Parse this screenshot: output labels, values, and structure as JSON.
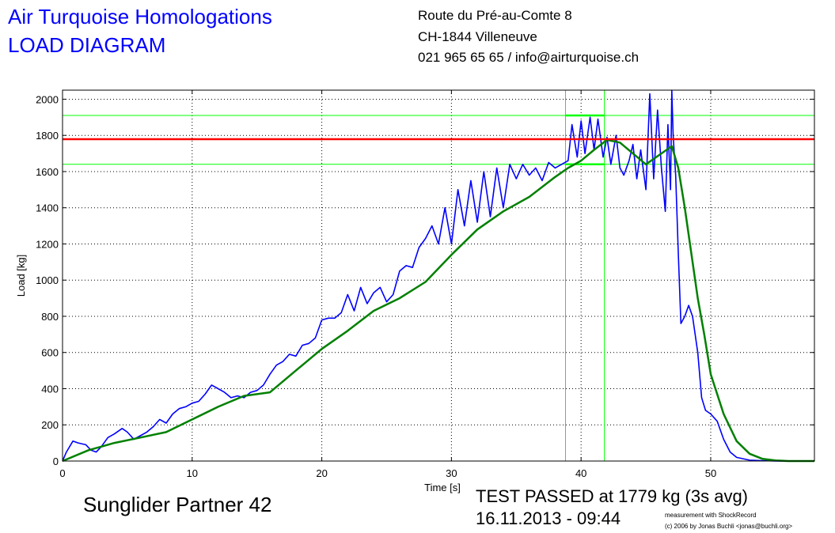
{
  "header": {
    "title_line1": "Air Turquoise Homologations",
    "title_line2": "LOAD DIAGRAM",
    "address_line1": "Route du Pré-au-Comte 8",
    "address_line2": "CH-1844 Villeneuve",
    "address_line3": "021 965 65 65 / info@airturquoise.ch"
  },
  "footer": {
    "product": "Sunglider Partner 42",
    "verdict": "TEST PASSED at 1779 kg (3s avg)",
    "datetime": "16.11.2013 - 09:44",
    "credit_line1": "measurement with ShockRecord",
    "credit_line2": "(c) 2006 by Jonas Buchli <jonas@buchli.org>"
  },
  "colors": {
    "raw": "#0000ff",
    "avg": "#008000",
    "threshold": "#ff0000",
    "window": "#00ff00"
  },
  "chart_data": {
    "type": "line",
    "xlabel": "Time [s]",
    "ylabel": "Load [kg]",
    "xlim": [
      0,
      58
    ],
    "ylim": [
      0,
      2050
    ],
    "xticks": [
      0,
      10,
      20,
      30,
      40,
      50
    ],
    "yticks": [
      0,
      200,
      400,
      600,
      800,
      1000,
      1200,
      1400,
      1600,
      1800,
      2000
    ],
    "grid": true,
    "threshold": 1779,
    "window_x": [
      38.8,
      41.8
    ],
    "window_y": [
      1640,
      1910
    ],
    "series": [
      {
        "key": "raw",
        "x": [
          0,
          0.3,
          0.8,
          1.2,
          1.8,
          2.2,
          2.6,
          3.0,
          3.5,
          4.0,
          4.6,
          5.0,
          5.5,
          6.0,
          6.5,
          7.0,
          7.5,
          8.0,
          8.5,
          9.0,
          9.5,
          10.0,
          10.5,
          11.0,
          11.5,
          12.0,
          12.5,
          13.0,
          13.5,
          14.0,
          14.5,
          15.0,
          15.5,
          16.0,
          16.5,
          17.0,
          17.5,
          18.0,
          18.5,
          19.0,
          19.5,
          20.0,
          20.5,
          21.0,
          21.5,
          22.0,
          22.5,
          23.0,
          23.5,
          24.0,
          24.5,
          25.0,
          25.5,
          26.0,
          26.5,
          27.0,
          27.5,
          28.0,
          28.5,
          29.0,
          29.5,
          30.0,
          30.5,
          31.0,
          31.5,
          32.0,
          32.5,
          33.0,
          33.5,
          34.0,
          34.5,
          35.0,
          35.5,
          36.0,
          36.5,
          37.0,
          37.5,
          38.0,
          38.5,
          39.0,
          39.3,
          39.7,
          40.0,
          40.3,
          40.7,
          41.0,
          41.3,
          41.7,
          42.0,
          42.3,
          42.7,
          43.0,
          43.3,
          43.7,
          44.0,
          44.3,
          44.6,
          45.0,
          45.3,
          45.6,
          45.9,
          46.2,
          46.5,
          46.7,
          46.9,
          47.0,
          47.1,
          47.3,
          47.5,
          47.7,
          48.0,
          48.3,
          48.6,
          49.0,
          49.3,
          49.6,
          50.0,
          50.5,
          51.0,
          51.5,
          52.0,
          53.0,
          54.0,
          55.0,
          56.0,
          57.0,
          58.0
        ],
        "values": [
          0,
          50,
          110,
          100,
          90,
          60,
          50,
          80,
          130,
          150,
          180,
          160,
          120,
          140,
          160,
          190,
          230,
          210,
          260,
          290,
          300,
          320,
          330,
          370,
          420,
          400,
          380,
          350,
          360,
          350,
          380,
          390,
          420,
          480,
          530,
          550,
          590,
          580,
          640,
          650,
          680,
          780,
          790,
          790,
          820,
          920,
          830,
          960,
          870,
          930,
          960,
          880,
          920,
          1050,
          1080,
          1070,
          1180,
          1230,
          1300,
          1200,
          1400,
          1200,
          1500,
          1300,
          1550,
          1320,
          1600,
          1350,
          1620,
          1400,
          1640,
          1560,
          1640,
          1580,
          1620,
          1550,
          1650,
          1620,
          1640,
          1660,
          1860,
          1680,
          1880,
          1700,
          1900,
          1720,
          1890,
          1680,
          1790,
          1640,
          1800,
          1620,
          1580,
          1660,
          1750,
          1560,
          1720,
          1500,
          2030,
          1560,
          1940,
          1620,
          1380,
          1860,
          1500,
          2050,
          1800,
          1580,
          1150,
          760,
          800,
          860,
          800,
          600,
          350,
          280,
          260,
          220,
          120,
          50,
          20,
          5,
          2,
          0,
          0,
          0,
          0
        ]
      },
      {
        "key": "avg",
        "x": [
          0,
          2,
          4,
          6,
          8,
          10,
          12,
          14,
          16,
          18,
          20,
          22,
          24,
          26,
          28,
          30,
          32,
          34,
          36,
          38,
          39,
          40,
          41,
          42,
          43,
          44,
          45,
          46,
          47,
          47.5,
          48,
          48.5,
          49,
          49.5,
          50,
          51,
          52,
          53,
          54,
          55,
          56,
          58
        ],
        "values": [
          0,
          60,
          100,
          130,
          160,
          230,
          300,
          360,
          380,
          500,
          620,
          720,
          830,
          900,
          990,
          1140,
          1280,
          1380,
          1460,
          1570,
          1620,
          1660,
          1720,
          1775,
          1760,
          1700,
          1640,
          1690,
          1740,
          1620,
          1400,
          1150,
          900,
          700,
          480,
          260,
          110,
          40,
          12,
          3,
          0,
          0
        ]
      }
    ]
  }
}
